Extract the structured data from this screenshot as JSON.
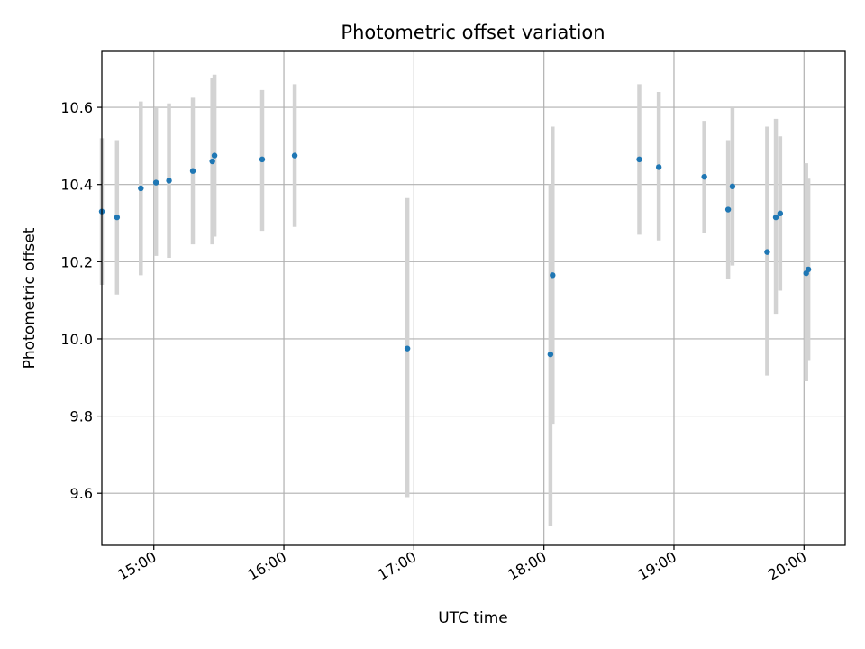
{
  "chart_data": {
    "type": "scatter",
    "title": "Photometric offset variation",
    "xlabel": "UTC time",
    "ylabel": "Photometric offset",
    "xlim": [
      "14:36",
      "20:19"
    ],
    "ylim": [
      9.465,
      10.745
    ],
    "grid": true,
    "x_ticks": [
      "15:00",
      "16:00",
      "17:00",
      "18:00",
      "19:00",
      "20:00"
    ],
    "y_ticks": [
      "9.6",
      "9.8",
      "10.0",
      "10.2",
      "10.4",
      "10.6"
    ],
    "colors": {
      "point": "#1f77b4",
      "errorbar": "#d3d3d3",
      "grid": "#b0b0b0",
      "axes": "#000000"
    },
    "points": [
      {
        "x": "14:36",
        "y": 10.33,
        "err_low": 10.14,
        "err_high": 10.52
      },
      {
        "x": "14:43",
        "y": 10.315,
        "err_low": 10.115,
        "err_high": 10.515
      },
      {
        "x": "14:54",
        "y": 10.39,
        "err_low": 10.165,
        "err_high": 10.615
      },
      {
        "x": "15:01",
        "y": 10.405,
        "err_low": 10.215,
        "err_high": 10.6
      },
      {
        "x": "15:07",
        "y": 10.41,
        "err_low": 10.21,
        "err_high": 10.61
      },
      {
        "x": "15:18",
        "y": 10.435,
        "err_low": 10.245,
        "err_high": 10.625
      },
      {
        "x": "15:27",
        "y": 10.46,
        "err_low": 10.245,
        "err_high": 10.675
      },
      {
        "x": "15:28",
        "y": 10.475,
        "err_low": 10.265,
        "err_high": 10.685
      },
      {
        "x": "15:50",
        "y": 10.465,
        "err_low": 10.28,
        "err_high": 10.645
      },
      {
        "x": "16:05",
        "y": 10.475,
        "err_low": 10.29,
        "err_high": 10.66
      },
      {
        "x": "16:57",
        "y": 9.975,
        "err_low": 9.59,
        "err_high": 10.365
      },
      {
        "x": "18:03",
        "y": 9.96,
        "err_low": 9.515,
        "err_high": 10.4
      },
      {
        "x": "18:04",
        "y": 10.165,
        "err_low": 9.78,
        "err_high": 10.55
      },
      {
        "x": "18:44",
        "y": 10.465,
        "err_low": 10.27,
        "err_high": 10.66
      },
      {
        "x": "18:53",
        "y": 10.445,
        "err_low": 10.255,
        "err_high": 10.64
      },
      {
        "x": "19:14",
        "y": 10.42,
        "err_low": 10.275,
        "err_high": 10.565
      },
      {
        "x": "19:25",
        "y": 10.335,
        "err_low": 10.155,
        "err_high": 10.515
      },
      {
        "x": "19:27",
        "y": 10.395,
        "err_low": 10.19,
        "err_high": 10.6
      },
      {
        "x": "19:43",
        "y": 10.225,
        "err_low": 9.905,
        "err_high": 10.55
      },
      {
        "x": "19:47",
        "y": 10.315,
        "err_low": 10.065,
        "err_high": 10.57
      },
      {
        "x": "19:49",
        "y": 10.325,
        "err_low": 10.125,
        "err_high": 10.525
      },
      {
        "x": "20:01",
        "y": 10.17,
        "err_low": 9.89,
        "err_high": 10.455
      },
      {
        "x": "20:02",
        "y": 10.18,
        "err_low": 9.945,
        "err_high": 10.415
      }
    ]
  }
}
